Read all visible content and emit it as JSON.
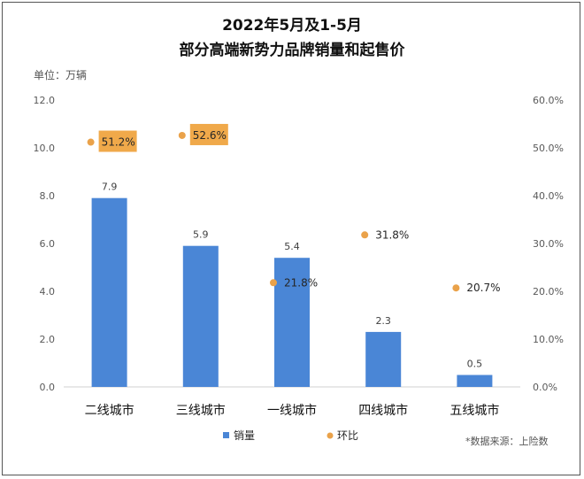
{
  "header": {
    "title_line1": "2022年5月及1-5月",
    "title_line2": "部分高端新势力品牌销量和起售价",
    "unit": "单位：万辆",
    "source": "*数据来源：上险数"
  },
  "colors": {
    "bar": "#4a86d6",
    "point": "#eaa24a",
    "highlight_box": "#f0a94a"
  },
  "chart_data": {
    "type": "bar",
    "categories": [
      "二线城市",
      "三线城市",
      "一线城市",
      "四线城市",
      "五线城市"
    ],
    "series": [
      {
        "name": "销量",
        "type": "bar",
        "axis": "left",
        "values": [
          7.9,
          5.9,
          5.4,
          2.3,
          0.5
        ],
        "labels": [
          "7.9",
          "5.9",
          "5.4",
          "2.3",
          "0.5"
        ]
      },
      {
        "name": "环比",
        "type": "scatter",
        "axis": "right",
        "values": [
          51.2,
          52.6,
          21.8,
          31.8,
          20.7
        ],
        "labels": [
          "51.2%",
          "52.6%",
          "21.8%",
          "31.8%",
          "20.7%"
        ],
        "highlighted": [
          true,
          true,
          false,
          false,
          false
        ]
      }
    ],
    "ylim_left": [
      0,
      12
    ],
    "yticks_left": [
      "0.0",
      "2.0",
      "4.0",
      "6.0",
      "8.0",
      "10.0",
      "12.0"
    ],
    "ylim_right": [
      0,
      60
    ],
    "yticks_right": [
      "0.0%",
      "10.0%",
      "20.0%",
      "30.0%",
      "40.0%",
      "50.0%",
      "60.0%"
    ],
    "legend_position": "bottom",
    "grid": false
  }
}
